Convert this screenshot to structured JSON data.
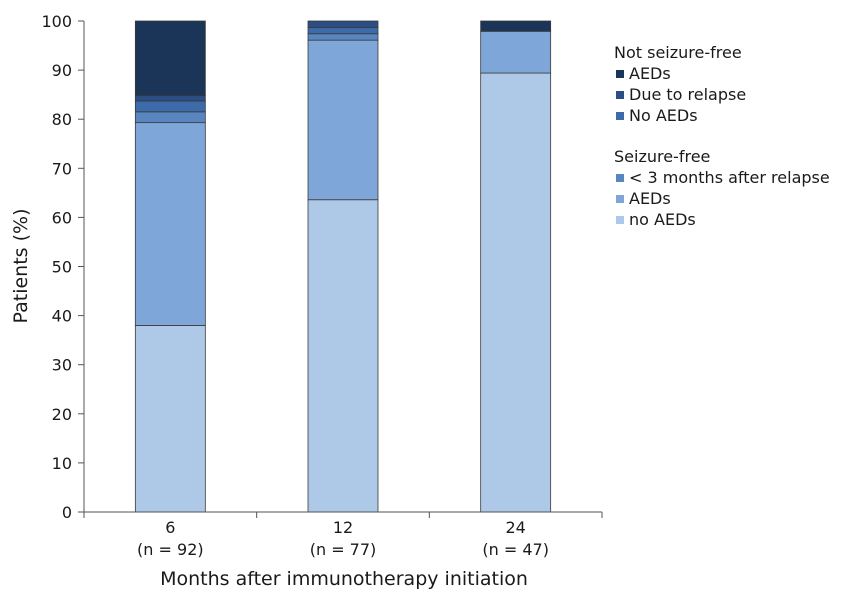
{
  "chart_data": {
    "type": "bar",
    "stacked": true,
    "categories": [
      "6",
      "12",
      "24"
    ],
    "category_sublabels": [
      "(n = 92)",
      "(n = 77)",
      "(n = 47)"
    ],
    "xlabel": "Months after immunotherapy initiation",
    "ylabel": "Patients (%)",
    "ylim": [
      0,
      100
    ],
    "yticks": [
      "0",
      "10",
      "20",
      "30",
      "40",
      "50",
      "60",
      "70",
      "80",
      "90",
      "100"
    ],
    "grid": false,
    "legend_position": "right",
    "series": [
      {
        "name": "no AEDs",
        "group": "Seizure-free",
        "color": "#aec8e8",
        "values": [
          38.0,
          63.6,
          89.4
        ]
      },
      {
        "name": "AEDs",
        "group": "Seizure-free",
        "color": "#7ea6d8",
        "values": [
          41.3,
          32.5,
          8.5
        ]
      },
      {
        "name": "< 3 months after relapse",
        "group": "Seizure-free",
        "color": "#5a86c0",
        "values": [
          2.2,
          1.3,
          0
        ]
      },
      {
        "name": "No AEDs",
        "group": "Not seizure-free",
        "color": "#3d6aa8",
        "values": [
          2.2,
          1.3,
          0
        ]
      },
      {
        "name": "Due to relapse",
        "group": "Not seizure-free",
        "color": "#2b4f85",
        "values": [
          1.1,
          1.3,
          0
        ]
      },
      {
        "name": "AEDs",
        "group": "Not seizure-free",
        "color": "#1b3559",
        "values": [
          15.2,
          0,
          2.1
        ]
      }
    ]
  },
  "legend": {
    "groups": [
      {
        "title": "Not seizure-free",
        "items": [
          {
            "label": "AEDs",
            "color": "#1b3559"
          },
          {
            "label": "Due to relapse",
            "color": "#2b4f85"
          },
          {
            "label": "No AEDs",
            "color": "#3d6aa8"
          }
        ]
      },
      {
        "title": "Seizure-free",
        "items": [
          {
            "label": "< 3 months after relapse",
            "color": "#5a86c0"
          },
          {
            "label": "AEDs",
            "color": "#7ea6d8"
          },
          {
            "label": "no AEDs",
            "color": "#aec8e8"
          }
        ]
      }
    ]
  }
}
